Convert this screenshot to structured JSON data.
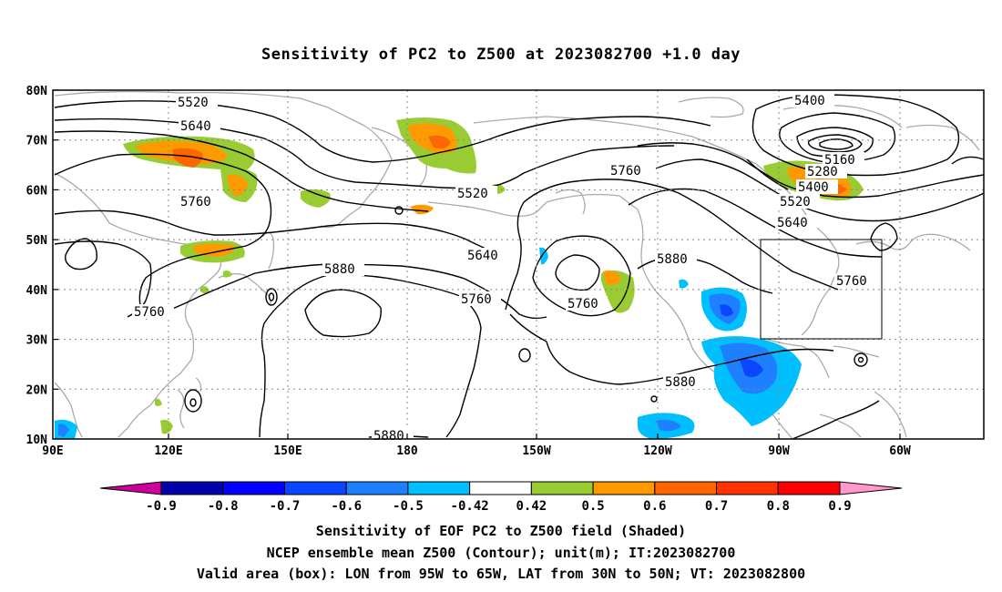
{
  "title": "Sensitivity of PC2 to Z500 at 2023082700 +1.0 day",
  "lat_labels": [
    "80N",
    "70N",
    "60N",
    "50N",
    "40N",
    "30N",
    "20N",
    "10N"
  ],
  "lon_labels": [
    "90E",
    "120E",
    "150E",
    "180",
    "150W",
    "120W",
    "90W",
    "60W"
  ],
  "contour_labels": {
    "c5520_a": "5520",
    "c5640_a": "5640",
    "c5760_a": "5760",
    "c5760_b": "5760",
    "c5520_b": "5520",
    "c5760_c": "5760",
    "c5640_b": "5640",
    "c5880_a": "5880",
    "c5760_d": "5760",
    "c5760_e": "5760",
    "c5880_b": "5880",
    "c5880_c": "5880",
    "c5880_d": "5880",
    "c5400_a": "5400",
    "c5160": "5160",
    "c5280": "5280",
    "c5400_b": "5400",
    "c5520_c": "5520",
    "c5640_c": "5640",
    "c5760_f": "5760"
  },
  "colorbar": {
    "labels": [
      "-0.9",
      "-0.8",
      "-0.7",
      "-0.6",
      "-0.5",
      "-0.42",
      "0.42",
      "0.5",
      "0.6",
      "0.7",
      "0.8",
      "0.9"
    ],
    "colors": [
      "#0000aa",
      "#0000ff",
      "#0a46ff",
      "#1e7fff",
      "#00bfff",
      "#ffffff",
      "#99cc33",
      "#ff9900",
      "#ff6600",
      "#ff3300",
      "#ff0000"
    ],
    "end_colors": {
      "low": "#cc0099",
      "high": "#ff99cc"
    }
  },
  "valid_box": {
    "lon_from": "95W",
    "lon_to": "65W",
    "lat_from": "30N",
    "lat_to": "50N"
  },
  "captions": {
    "line1": "Sensitivity of EOF PC2 to Z500 field (Shaded)",
    "line2": "NCEP ensemble mean Z500 (Contour); unit(m); IT:2023082700",
    "line3": "Valid area (box): LON from 95W to 65W, LAT from 30N to 50N; VT: 2023082800"
  }
}
